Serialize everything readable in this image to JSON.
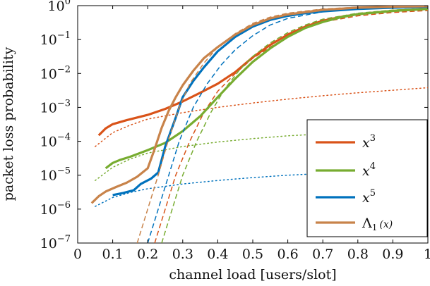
{
  "chart_data": {
    "type": "line",
    "xlabel": "channel load [users/slot]",
    "ylabel": "packet loss probability",
    "xlim": [
      0,
      1
    ],
    "ylim": [
      1e-07,
      1
    ],
    "y_scale": "log",
    "grid": false,
    "legend_placement": "bottom-right",
    "x_ticks": [
      0,
      0.1,
      0.2,
      0.3,
      0.4,
      0.5,
      0.6,
      0.7,
      0.8,
      0.9,
      1
    ],
    "x_tick_labels": [
      "0",
      "0.1",
      "0.2",
      "0.3",
      "0.4",
      "0.5",
      "0.6",
      "0.7",
      "0.8",
      "0.9",
      "1"
    ],
    "y_ticks": [
      1e-07,
      1e-06,
      1e-05,
      0.0001,
      0.001,
      0.01,
      0.1,
      1
    ],
    "y_tick_exponents": [
      "−7",
      "−6",
      "−5",
      "−4",
      "−3",
      "−2",
      "−1",
      "0"
    ],
    "y_tick_base": "10",
    "series": [
      {
        "name": "x",
        "name_sup": "3",
        "color": "#d95319",
        "solid": [
          [
            0.06,
            0.00015
          ],
          [
            0.08,
            0.00024
          ],
          [
            0.1,
            0.00032
          ],
          [
            0.14,
            0.00042
          ],
          [
            0.2,
            0.0006
          ],
          [
            0.25,
            0.0009
          ],
          [
            0.3,
            0.0015
          ],
          [
            0.35,
            0.0027
          ],
          [
            0.4,
            0.005
          ],
          [
            0.45,
            0.011
          ],
          [
            0.5,
            0.03
          ],
          [
            0.55,
            0.07
          ],
          [
            0.6,
            0.14
          ],
          [
            0.65,
            0.24
          ],
          [
            0.7,
            0.36
          ],
          [
            0.75,
            0.46
          ],
          [
            0.8,
            0.56
          ],
          [
            0.85,
            0.63
          ],
          [
            0.9,
            0.7
          ],
          [
            0.95,
            0.75
          ],
          [
            1.0,
            0.8
          ]
        ],
        "dashed": [
          [
            0.22,
            1e-07
          ],
          [
            0.25,
            1e-06
          ],
          [
            0.28,
            1e-05
          ],
          [
            0.32,
            0.0001
          ],
          [
            0.36,
            0.0007
          ],
          [
            0.4,
            0.003
          ],
          [
            0.45,
            0.01
          ],
          [
            0.5,
            0.028
          ],
          [
            0.55,
            0.06
          ],
          [
            0.6,
            0.12
          ],
          [
            0.65,
            0.22
          ],
          [
            0.7,
            0.33
          ],
          [
            0.8,
            0.5
          ],
          [
            0.9,
            0.63
          ],
          [
            1.0,
            0.72
          ]
        ],
        "dotted": [
          [
            0.05,
            7e-05
          ],
          [
            0.1,
            0.00018
          ],
          [
            0.15,
            0.0003
          ],
          [
            0.2,
            0.00045
          ],
          [
            0.3,
            0.0007
          ],
          [
            0.4,
            0.001
          ],
          [
            0.5,
            0.00135
          ],
          [
            0.6,
            0.00175
          ],
          [
            0.7,
            0.0022
          ],
          [
            0.8,
            0.0027
          ],
          [
            0.9,
            0.0032
          ],
          [
            1.0,
            0.0038
          ]
        ]
      },
      {
        "name": "x",
        "name_sup": "4",
        "color": "#77ac30",
        "solid": [
          [
            0.08,
            1.6e-05
          ],
          [
            0.1,
            2.3e-05
          ],
          [
            0.12,
            2.8e-05
          ],
          [
            0.15,
            3.5e-05
          ],
          [
            0.2,
            5.5e-05
          ],
          [
            0.25,
            9e-05
          ],
          [
            0.3,
            0.0002
          ],
          [
            0.35,
            0.00055
          ],
          [
            0.4,
            0.002
          ],
          [
            0.45,
            0.007
          ],
          [
            0.5,
            0.022
          ],
          [
            0.55,
            0.055
          ],
          [
            0.6,
            0.12
          ],
          [
            0.65,
            0.22
          ],
          [
            0.7,
            0.33
          ],
          [
            0.75,
            0.45
          ],
          [
            0.8,
            0.56
          ],
          [
            0.9,
            0.7
          ],
          [
            1.0,
            0.8
          ]
        ],
        "dashed": [
          [
            0.24,
            1e-07
          ],
          [
            0.27,
            1e-06
          ],
          [
            0.3,
            1e-05
          ],
          [
            0.34,
            0.0001
          ],
          [
            0.38,
            0.0007
          ],
          [
            0.42,
            0.0035
          ],
          [
            0.46,
            0.012
          ],
          [
            0.5,
            0.032
          ],
          [
            0.55,
            0.08
          ],
          [
            0.6,
            0.16
          ],
          [
            0.65,
            0.27
          ],
          [
            0.7,
            0.4
          ],
          [
            0.8,
            0.6
          ],
          [
            0.9,
            0.74
          ],
          [
            1.0,
            0.83
          ]
        ],
        "dotted": [
          [
            0.05,
            7e-06
          ],
          [
            0.1,
            1.7e-05
          ],
          [
            0.15,
            3e-05
          ],
          [
            0.2,
            4.5e-05
          ],
          [
            0.3,
            7e-05
          ],
          [
            0.4,
            9.5e-05
          ],
          [
            0.5,
            0.00012
          ],
          [
            0.6,
            0.000145
          ],
          [
            0.7,
            0.000165
          ],
          [
            0.8,
            0.000185
          ],
          [
            0.9,
            0.0002
          ],
          [
            1.0,
            0.00022
          ]
        ]
      },
      {
        "name": "x",
        "name_sup": "5",
        "color": "#0072bd",
        "solid": [
          [
            0.1,
            2.6e-06
          ],
          [
            0.13,
            3e-06
          ],
          [
            0.16,
            3.6e-06
          ],
          [
            0.18,
            5.5e-06
          ],
          [
            0.21,
            8e-06
          ],
          [
            0.23,
            1.2e-05
          ],
          [
            0.25,
            7e-05
          ],
          [
            0.28,
            0.0005
          ],
          [
            0.3,
            0.002
          ],
          [
            0.33,
            0.006
          ],
          [
            0.36,
            0.015
          ],
          [
            0.4,
            0.045
          ],
          [
            0.45,
            0.12
          ],
          [
            0.5,
            0.24
          ],
          [
            0.55,
            0.38
          ],
          [
            0.6,
            0.5
          ],
          [
            0.65,
            0.6
          ],
          [
            0.7,
            0.68
          ],
          [
            0.8,
            0.8
          ],
          [
            0.9,
            0.87
          ],
          [
            1.0,
            0.92
          ]
        ],
        "dashed": [
          [
            0.2,
            1e-07
          ],
          [
            0.23,
            1e-06
          ],
          [
            0.26,
            1e-05
          ],
          [
            0.29,
            0.0001
          ],
          [
            0.33,
            0.001
          ],
          [
            0.37,
            0.005
          ],
          [
            0.41,
            0.018
          ],
          [
            0.45,
            0.05
          ],
          [
            0.5,
            0.13
          ],
          [
            0.55,
            0.27
          ],
          [
            0.6,
            0.42
          ],
          [
            0.7,
            0.66
          ],
          [
            0.8,
            0.82
          ],
          [
            0.9,
            0.9
          ],
          [
            1.0,
            0.94
          ]
        ],
        "dotted": [
          [
            0.05,
            1.2e-06
          ],
          [
            0.1,
            2.2e-06
          ],
          [
            0.15,
            3.1e-06
          ],
          [
            0.2,
            4e-06
          ],
          [
            0.3,
            5.5e-06
          ],
          [
            0.4,
            7e-06
          ],
          [
            0.5,
            8.5e-06
          ],
          [
            0.6,
            1e-05
          ],
          [
            0.7,
            1.12e-05
          ],
          [
            0.8,
            1.25e-05
          ],
          [
            0.9,
            1.37e-05
          ],
          [
            1.0,
            1.5e-05
          ]
        ]
      },
      {
        "name": "Λ",
        "name_sub": "1",
        "name_arg": "(x)",
        "color": "#c8834a",
        "solid": [
          [
            0.04,
            1.5e-06
          ],
          [
            0.06,
            2.4e-06
          ],
          [
            0.08,
            3.3e-06
          ],
          [
            0.11,
            4.5e-06
          ],
          [
            0.14,
            6e-06
          ],
          [
            0.17,
            9e-06
          ],
          [
            0.2,
            1.6e-05
          ],
          [
            0.22,
            6e-05
          ],
          [
            0.24,
            0.00025
          ],
          [
            0.26,
            0.0008
          ],
          [
            0.28,
            0.002
          ],
          [
            0.3,
            0.0045
          ],
          [
            0.33,
            0.012
          ],
          [
            0.36,
            0.028
          ],
          [
            0.4,
            0.06
          ],
          [
            0.45,
            0.14
          ],
          [
            0.5,
            0.27
          ],
          [
            0.55,
            0.42
          ],
          [
            0.6,
            0.55
          ],
          [
            0.7,
            0.75
          ],
          [
            0.8,
            0.87
          ],
          [
            0.9,
            0.93
          ],
          [
            1.0,
            0.96
          ]
        ],
        "dashed": [
          [
            0.17,
            1e-07
          ],
          [
            0.2,
            1e-06
          ],
          [
            0.23,
            1e-05
          ],
          [
            0.26,
            0.00012
          ],
          [
            0.29,
            0.001
          ],
          [
            0.32,
            0.005
          ],
          [
            0.36,
            0.02
          ],
          [
            0.4,
            0.06
          ],
          [
            0.45,
            0.15
          ],
          [
            0.5,
            0.3
          ],
          [
            0.55,
            0.46
          ],
          [
            0.6,
            0.6
          ],
          [
            0.7,
            0.8
          ],
          [
            0.8,
            0.9
          ],
          [
            0.9,
            0.95
          ],
          [
            1.0,
            0.97
          ]
        ],
        "dotted": []
      }
    ]
  }
}
